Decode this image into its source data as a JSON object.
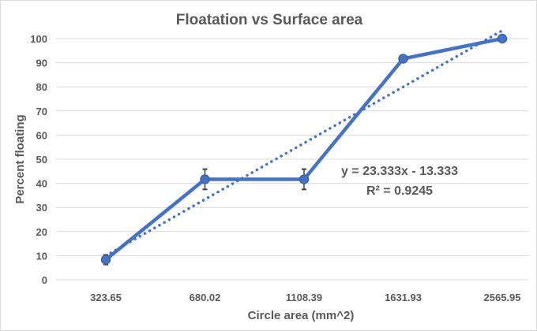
{
  "chart_data": {
    "type": "line",
    "title": "Floatation vs Surface area",
    "xlabel": "Circle area (mm^2)",
    "ylabel": "Percent floating",
    "categories": [
      "323.65",
      "680.02",
      "1108.39",
      "1631.93",
      "2565.95"
    ],
    "series": [
      {
        "values": [
          8.33,
          41.67,
          41.67,
          91.67,
          100
        ],
        "error": [
          2,
          4.2,
          4.2,
          1.5,
          0
        ],
        "color": "#4472C4"
      }
    ],
    "trendline": {
      "type": "linear",
      "slope": 23.333,
      "intercept": -13.333,
      "style": "dotted",
      "color": "#4472C4"
    },
    "annotations": [
      "y = 23.333x - 13.333",
      "R² = 0.9245"
    ],
    "ylim": [
      0,
      100
    ],
    "yticks": [
      0,
      10,
      20,
      30,
      40,
      50,
      60,
      70,
      80,
      90,
      100
    ],
    "grid": true,
    "legend": "none"
  }
}
